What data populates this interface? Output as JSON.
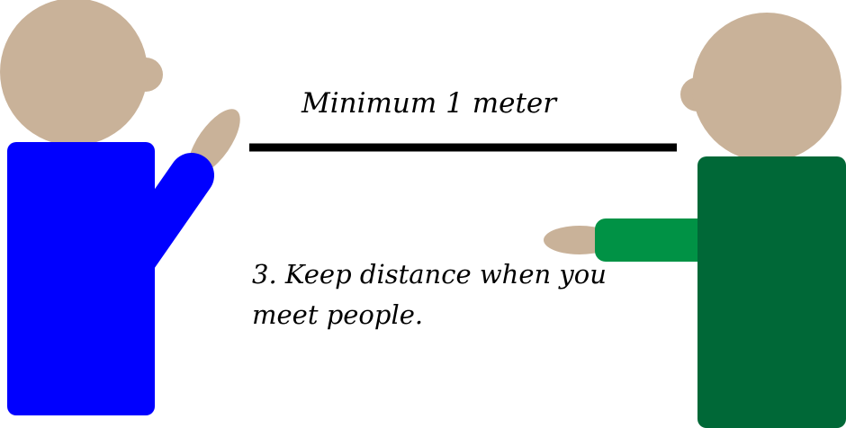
{
  "illustration": {
    "distance_label": "Minimum 1 meter",
    "instruction_line_1": "3. Keep distance when you",
    "instruction_line_2": "meet people."
  },
  "colors": {
    "background": "#ffffff",
    "skin": "#c9b299",
    "left_person_shirt": "#0000ff",
    "right_person_shirt": "#006837",
    "right_person_sleeve": "#009245",
    "distance_line": "#000000",
    "text": "#000000"
  }
}
